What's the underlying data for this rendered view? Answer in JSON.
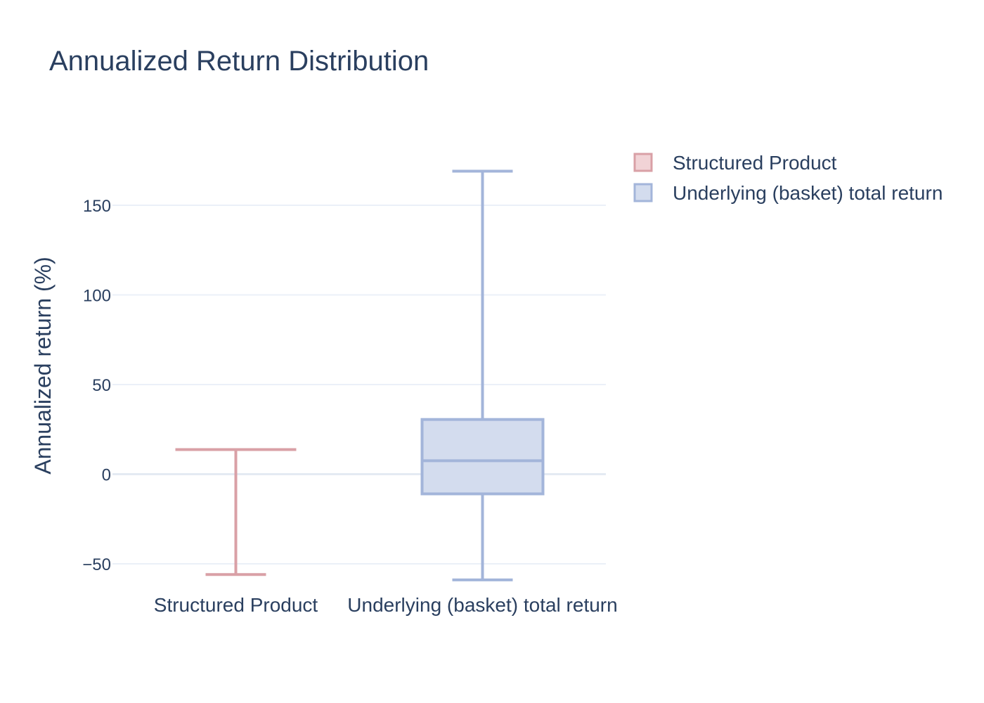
{
  "chart_data": {
    "type": "box",
    "title": "Annualized Return Distribution",
    "xlabel": "",
    "ylabel": "Annualized return (%)",
    "ylim": [
      -61,
      190
    ],
    "yticks": [
      -50,
      0,
      50,
      100,
      150
    ],
    "ytick_labels": [
      "−50",
      "0",
      "50",
      "100",
      "150"
    ],
    "grid": true,
    "legend_position": "top-right",
    "categories": [
      "Structured Product",
      "Underlying (basket) total return"
    ],
    "series": [
      {
        "name": "Structured Product",
        "color": "#d9a0a6",
        "fill": "#f1d3d6",
        "min": -56,
        "q1": 13.7,
        "median": 13.7,
        "q3": 13.7,
        "max": 13.7
      },
      {
        "name": "Underlying (basket) total return",
        "color": "#a3b5da",
        "fill": "#d3dcee",
        "min": -59,
        "q1": -11,
        "median": 7.5,
        "q3": 30.5,
        "max": 169
      }
    ]
  }
}
